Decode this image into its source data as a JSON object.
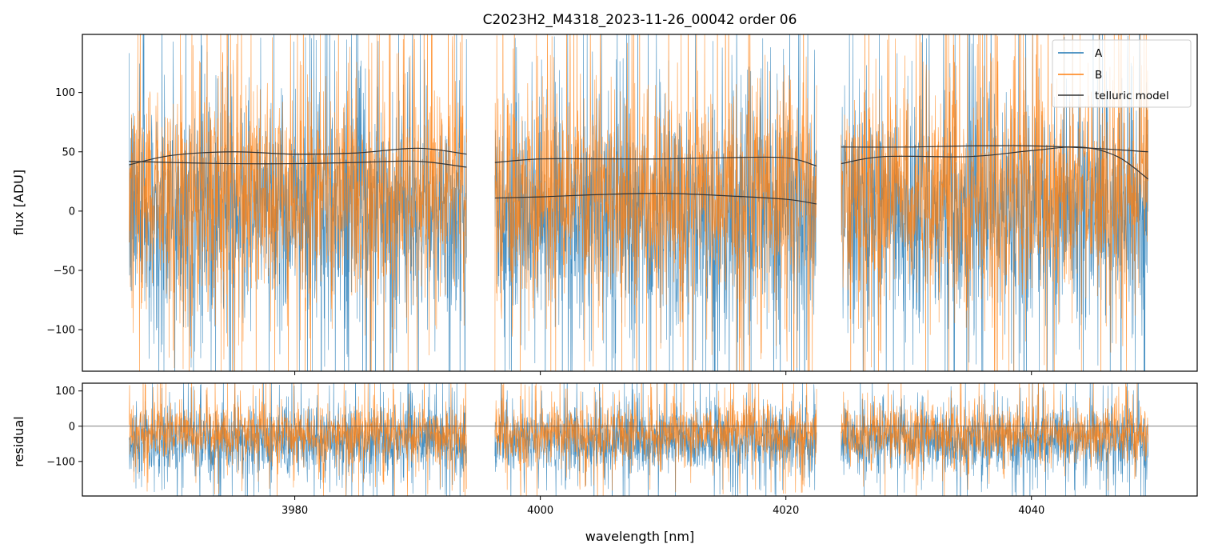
{
  "chart_data": [
    {
      "type": "line",
      "panel": "main",
      "title": "C2023H2_M4318_2023-11-26_00042  order 06",
      "xlabel": "",
      "ylabel": "flux [ADU]",
      "xlim": [
        3962.7,
        4053.5
      ],
      "ylim": [
        -135,
        149
      ],
      "yticks": [
        100,
        50,
        0,
        -50,
        -100
      ],
      "ytick_labels": [
        "100",
        "50",
        "0",
        "−50",
        "−100"
      ],
      "xticks": [
        3980,
        4000,
        4020,
        4040
      ],
      "segments": [
        [
          3966.5,
          3994.0
        ],
        [
          3996.3,
          4022.5
        ],
        [
          4024.5,
          4049.5
        ]
      ],
      "series": [
        {
          "name": "A",
          "color": "#1f77b4",
          "center": 0,
          "spread": 48,
          "peak": 190
        },
        {
          "name": "B",
          "color": "#ff7f0e",
          "center": 15,
          "spread": 45,
          "peak": 180
        }
      ],
      "telluric_model": {
        "name": "telluric model",
        "color": "#333333",
        "curves": [
          {
            "x": [
              3966.5,
              3970,
              3975,
              3980,
              3985,
              3990,
              3994.0
            ],
            "y": [
              39,
              47,
              50,
              48,
              49,
              53,
              48
            ]
          },
          {
            "x": [
              3966.5,
              3970,
              3975,
              3980,
              3985,
              3990,
              3994.0
            ],
            "y": [
              42,
              41,
              40,
              40,
              41,
              42,
              37
            ]
          },
          {
            "x": [
              3996.3,
              4000,
              4005,
              4010,
              4015,
              4020,
              4022.5
            ],
            "y": [
              41,
              44,
              44,
              44,
              45,
              45,
              38
            ]
          },
          {
            "x": [
              3996.3,
              4000,
              4005,
              4010,
              4015,
              4020,
              4022.5
            ],
            "y": [
              11,
              12,
              14,
              15,
              13,
              10,
              6
            ]
          },
          {
            "x": [
              4024.5,
              4030,
              4035,
              4040,
              4045,
              4049.5
            ],
            "y": [
              54,
              54,
              55,
              55,
              53,
              50
            ]
          },
          {
            "x": [
              4024.5,
              4028,
              4035,
              4040,
              4044,
              4047,
              4049.5
            ],
            "y": [
              40,
              46,
              46,
              51,
              54,
              46,
              27
            ]
          }
        ]
      },
      "legend": {
        "placement": "top-right",
        "entries": [
          "A",
          "B",
          "telluric model"
        ]
      }
    },
    {
      "type": "line",
      "panel": "residual",
      "xlabel": "wavelength [nm]",
      "ylabel": "residual",
      "xlim": [
        3962.7,
        4053.5
      ],
      "ylim": [
        -198,
        122
      ],
      "yticks": [
        100,
        0,
        -100
      ],
      "ytick_labels": [
        "100",
        "0",
        "−100"
      ],
      "xticks": [
        3980,
        4000,
        4020,
        4040
      ],
      "xtick_labels": [
        "3980",
        "4000",
        "4020",
        "4040"
      ],
      "zero_line": 0,
      "series": [
        {
          "name": "A",
          "color": "#1f77b4",
          "center": -40,
          "spread": 50,
          "peak": 200
        },
        {
          "name": "B",
          "color": "#ff7f0e",
          "center": -20,
          "spread": 42,
          "peak": 175
        }
      ]
    }
  ]
}
